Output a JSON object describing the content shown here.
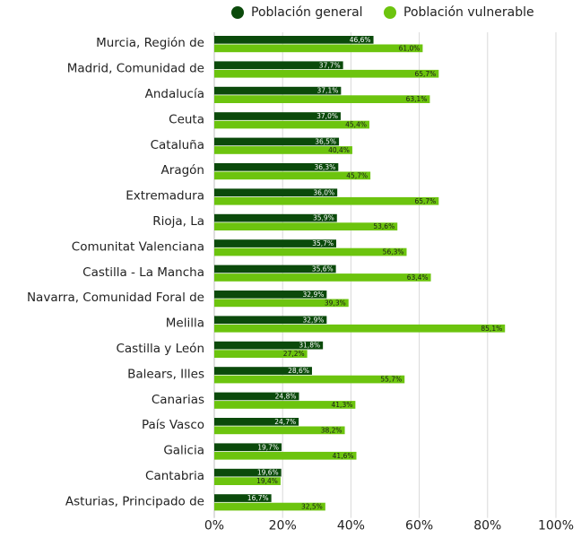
{
  "chart_data": {
    "type": "bar",
    "orientation": "horizontal",
    "title": "",
    "xlabel": "",
    "ylabel": "",
    "xlim": [
      0,
      100
    ],
    "x_ticks": [
      "0%",
      "20%",
      "40%",
      "60%",
      "80%",
      "100%"
    ],
    "grid": true,
    "legend_position": "top",
    "categories": [
      "Murcia, Región de",
      "Madrid, Comunidad de",
      "Andalucía",
      "Ceuta",
      "Cataluña",
      "Aragón",
      "Extremadura",
      "Rioja, La",
      "Comunitat Valenciana",
      "Castilla - La Mancha",
      "Navarra, Comunidad Foral de",
      "Melilla",
      "Castilla y León",
      "Balears, Illes",
      "Canarias",
      "País Vasco",
      "Galicia",
      "Cantabria",
      "Asturias, Principado de"
    ],
    "series": [
      {
        "name": "Población general",
        "color": "#0b4a0b",
        "label_color": "#ffffff",
        "values": [
          46.6,
          37.7,
          37.1,
          37.0,
          36.5,
          36.3,
          36.0,
          35.9,
          35.7,
          35.6,
          32.9,
          32.9,
          31.8,
          28.6,
          24.8,
          24.7,
          19.7,
          19.6,
          16.7
        ],
        "labels": [
          "46,6%",
          "37,7%",
          "37,1%",
          "37,0%",
          "36,5%",
          "36,3%",
          "36,0%",
          "35,9%",
          "35,7%",
          "35,6%",
          "32,9%",
          "32,9%",
          "31,8%",
          "28,6%",
          "24,8%",
          "24,7%",
          "19,7%",
          "19,6%",
          "16,7%"
        ]
      },
      {
        "name": "Población vulnerable",
        "color": "#6cc40e",
        "label_color": "#1a1a1a",
        "values": [
          61.0,
          65.7,
          63.1,
          45.4,
          40.4,
          45.7,
          65.7,
          53.6,
          56.3,
          63.4,
          39.3,
          85.1,
          27.2,
          55.7,
          41.3,
          38.2,
          41.6,
          19.4,
          32.5
        ],
        "labels": [
          "61,0%",
          "65,7%",
          "63,1%",
          "45,4%",
          "40,4%",
          "45,7%",
          "65,7%",
          "53,6%",
          "56,3%",
          "63,4%",
          "39,3%",
          "85,1%",
          "27,2%",
          "55,7%",
          "41,3%",
          "38,2%",
          "41,6%",
          "19,4%",
          "32,5%"
        ]
      }
    ]
  }
}
